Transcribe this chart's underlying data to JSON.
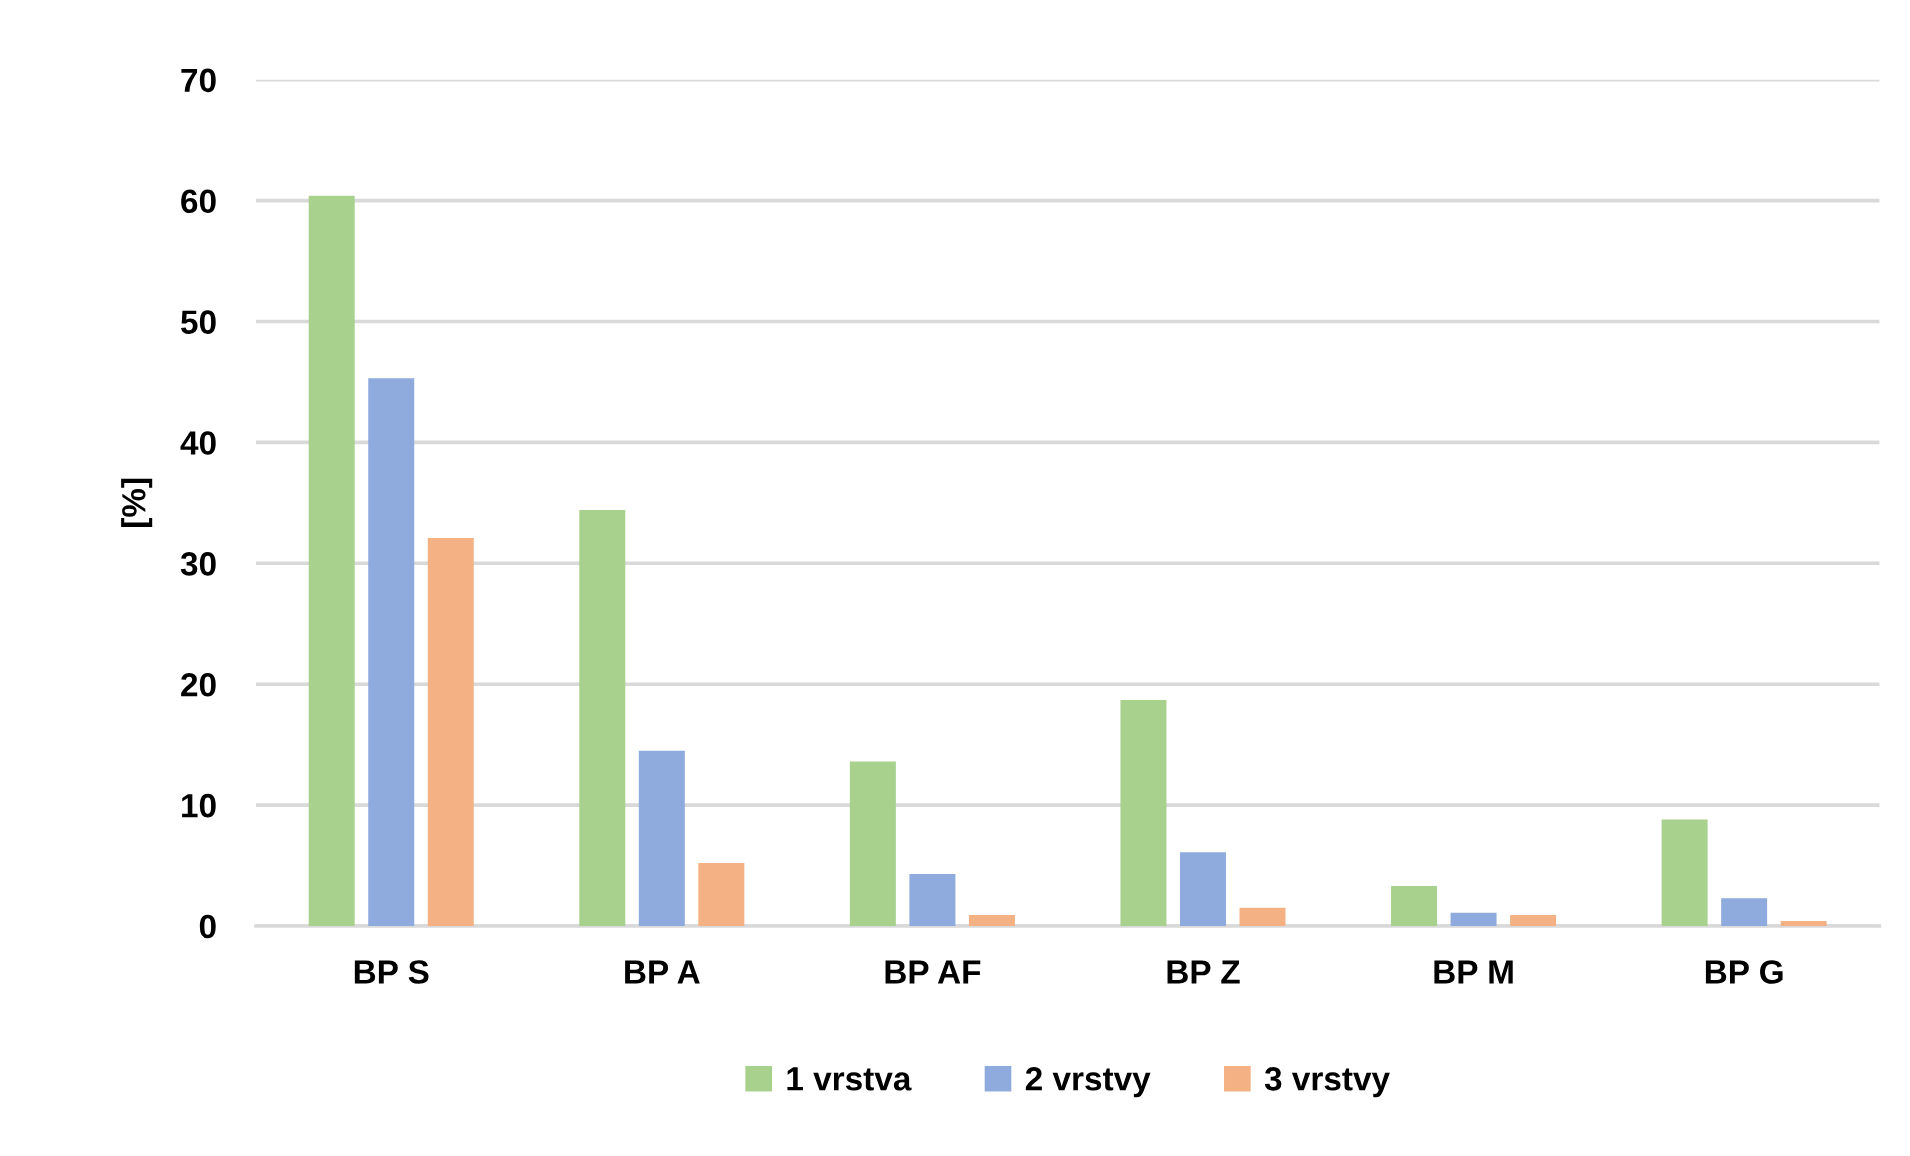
{
  "chart_data": {
    "type": "bar",
    "ylabel": "[%]",
    "categories": [
      "BP S",
      "BP A",
      "BP AF",
      "BP Z",
      "BP M",
      "BP G"
    ],
    "series": [
      {
        "name": "1 vrstva",
        "color": "#a9d18e",
        "values": [
          60.4,
          34.4,
          13.6,
          18.7,
          3.3,
          8.8
        ]
      },
      {
        "name": "2 vrstvy",
        "color": "#8faadc",
        "values": [
          45.3,
          14.5,
          4.3,
          6.1,
          1.1,
          2.3
        ]
      },
      {
        "name": "3 vrstvy",
        "color": "#f4b183",
        "values": [
          32.1,
          5.2,
          0.9,
          1.5,
          0.9,
          0.4
        ]
      }
    ],
    "ylim": [
      0,
      70
    ],
    "yticks": [
      0,
      10,
      20,
      30,
      40,
      50,
      60,
      70
    ],
    "grid": "y",
    "legend": "bottom"
  }
}
